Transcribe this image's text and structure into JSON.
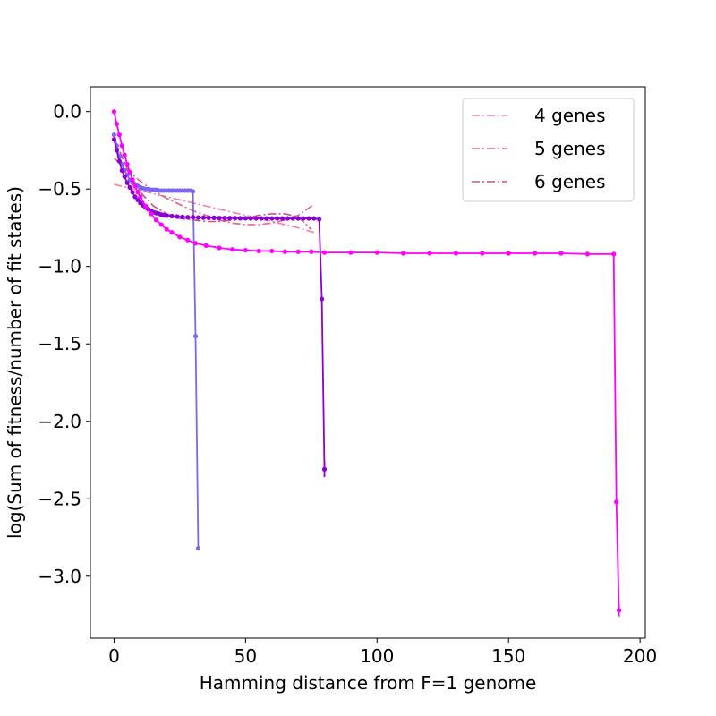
{
  "chart_data": {
    "type": "line",
    "title": "",
    "xlabel": "Hamming distance from F=1 genome",
    "ylabel": "log(Sum of fitness/number of fit states)",
    "xlim": [
      -9,
      202
    ],
    "ylim": [
      -3.4,
      0.16
    ],
    "xticks": [
      0,
      50,
      100,
      150,
      200
    ],
    "yticks": [
      0.0,
      -0.5,
      -1.0,
      -1.5,
      -2.0,
      -2.5,
      -3.0
    ],
    "xtick_labels": [
      "0",
      "50",
      "100",
      "150",
      "200"
    ],
    "ytick_labels": [
      "0.0",
      "−0.5",
      "−1.0",
      "−1.5",
      "−2.0",
      "−2.5",
      "−3.0"
    ],
    "grid": false,
    "legend_position": "top-right",
    "series": [
      {
        "name": "4 genes",
        "style": "dashdot",
        "color": "#f77ea0",
        "x": [
          0,
          10,
          20,
          30,
          40,
          50,
          60,
          70,
          76
        ],
        "y": [
          -0.47,
          -0.51,
          -0.55,
          -0.59,
          -0.63,
          -0.67,
          -0.71,
          -0.75,
          -0.78
        ]
      },
      {
        "name": "5 genes",
        "style": "dashdot",
        "color": "#e86090",
        "x": [
          0,
          5,
          10,
          15,
          20,
          25,
          30,
          35,
          40,
          45,
          50,
          55,
          60,
          65,
          70,
          76
        ],
        "y": [
          -0.3,
          -0.38,
          -0.45,
          -0.51,
          -0.56,
          -0.6,
          -0.64,
          -0.67,
          -0.7,
          -0.72,
          -0.73,
          -0.73,
          -0.72,
          -0.7,
          -0.67,
          -0.6
        ]
      },
      {
        "name": "6 genes",
        "style": "dashdot",
        "color": "#c8508a",
        "x": [
          0,
          5,
          10,
          15,
          20,
          25,
          30,
          35,
          40,
          45,
          50,
          55,
          60,
          65,
          70,
          75
        ],
        "y": [
          -0.17,
          -0.37,
          -0.52,
          -0.61,
          -0.66,
          -0.69,
          -0.7,
          -0.71,
          -0.71,
          -0.7,
          -0.69,
          -0.67,
          -0.66,
          -0.66,
          -0.68,
          -0.76
        ]
      },
      {
        "style": "solid-markers",
        "color": "#7b68ee",
        "x": [
          0,
          1,
          2,
          3,
          4,
          5,
          6,
          7,
          8,
          9,
          10,
          11,
          12,
          13,
          14,
          15,
          16,
          17,
          18,
          19,
          20,
          21,
          22,
          23,
          24,
          25,
          26,
          27,
          28,
          29,
          30,
          31,
          32
        ],
        "y": [
          -0.15,
          -0.22,
          -0.29,
          -0.34,
          -0.38,
          -0.41,
          -0.44,
          -0.46,
          -0.47,
          -0.48,
          -0.49,
          -0.495,
          -0.5,
          -0.5,
          -0.505,
          -0.505,
          -0.505,
          -0.51,
          -0.51,
          -0.51,
          -0.51,
          -0.51,
          -0.51,
          -0.51,
          -0.51,
          -0.51,
          -0.51,
          -0.51,
          -0.51,
          -0.51,
          -0.515,
          -1.45,
          -2.82
        ]
      },
      {
        "style": "solid-markers",
        "color": "#8a00d4",
        "x": [
          0,
          1,
          2,
          3,
          4,
          5,
          6,
          7,
          8,
          9,
          10,
          11,
          12,
          13,
          14,
          15,
          16,
          17,
          18,
          19,
          20,
          22,
          24,
          26,
          28,
          30,
          32,
          34,
          36,
          38,
          40,
          42,
          44,
          46,
          48,
          50,
          52,
          54,
          56,
          58,
          60,
          62,
          64,
          66,
          68,
          70,
          72,
          74,
          76,
          78,
          79,
          80
        ],
        "y": [
          -0.18,
          -0.25,
          -0.32,
          -0.38,
          -0.42,
          -0.46,
          -0.49,
          -0.52,
          -0.55,
          -0.57,
          -0.59,
          -0.605,
          -0.62,
          -0.63,
          -0.64,
          -0.65,
          -0.655,
          -0.66,
          -0.665,
          -0.67,
          -0.672,
          -0.675,
          -0.678,
          -0.68,
          -0.682,
          -0.683,
          -0.684,
          -0.685,
          -0.686,
          -0.686,
          -0.687,
          -0.687,
          -0.688,
          -0.688,
          -0.689,
          -0.689,
          -0.69,
          -0.69,
          -0.69,
          -0.69,
          -0.69,
          -0.69,
          -0.69,
          -0.69,
          -0.69,
          -0.69,
          -0.69,
          -0.69,
          -0.69,
          -0.695,
          -1.21,
          -2.31
        ],
        "error_bars": [
          {
            "x": 80,
            "y": -2.31,
            "err": 0.05
          }
        ]
      },
      {
        "style": "solid-markers",
        "color": "#ff00ff",
        "x": [
          0,
          1,
          2,
          3,
          4,
          5,
          6,
          7,
          8,
          9,
          10,
          12,
          14,
          16,
          18,
          20,
          22,
          25,
          28,
          31,
          35,
          40,
          45,
          50,
          55,
          60,
          65,
          70,
          75,
          80,
          90,
          100,
          110,
          120,
          130,
          140,
          150,
          160,
          170,
          180,
          190,
          191,
          192
        ],
        "y": [
          0.0,
          -0.08,
          -0.15,
          -0.22,
          -0.28,
          -0.34,
          -0.39,
          -0.44,
          -0.48,
          -0.52,
          -0.55,
          -0.61,
          -0.66,
          -0.7,
          -0.73,
          -0.76,
          -0.78,
          -0.81,
          -0.83,
          -0.85,
          -0.865,
          -0.88,
          -0.89,
          -0.895,
          -0.9,
          -0.9,
          -0.905,
          -0.905,
          -0.905,
          -0.91,
          -0.91,
          -0.91,
          -0.915,
          -0.915,
          -0.915,
          -0.915,
          -0.915,
          -0.915,
          -0.915,
          -0.92,
          -0.92,
          -2.52,
          -3.22
        ],
        "error_bars": [
          {
            "x": 192,
            "y": -3.22,
            "err": 0.04
          }
        ]
      }
    ]
  }
}
